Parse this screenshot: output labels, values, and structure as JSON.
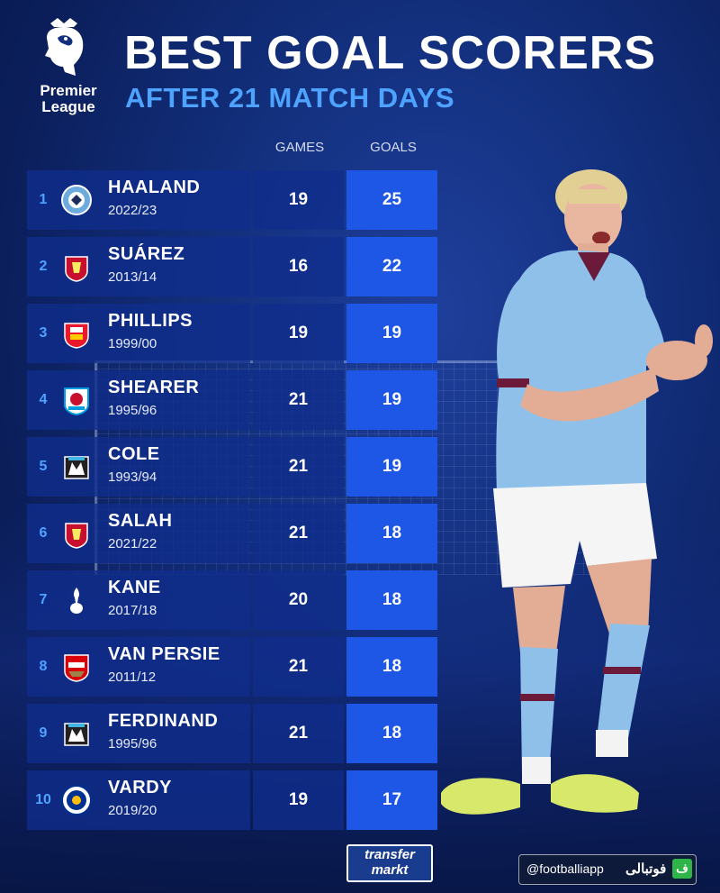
{
  "header": {
    "league_name": "Premier League",
    "title": "BEST GOAL SCORERS",
    "subtitle": "AFTER 21 MATCH DAYS"
  },
  "columns": {
    "games": "GAMES",
    "goals": "GOALS"
  },
  "rows": [
    {
      "rank": "1",
      "name": "HAALAND",
      "season": "2022/23",
      "games": "19",
      "goals": "25",
      "club_icon": "man-city-badge-icon"
    },
    {
      "rank": "2",
      "name": "SUÁREZ",
      "season": "2013/14",
      "games": "16",
      "goals": "22",
      "club_icon": "liverpool-badge-icon"
    },
    {
      "rank": "3",
      "name": "PHILLIPS",
      "season": "1999/00",
      "games": "19",
      "goals": "19",
      "club_icon": "sunderland-badge-icon"
    },
    {
      "rank": "4",
      "name": "SHEARER",
      "season": "1995/96",
      "games": "21",
      "goals": "19",
      "club_icon": "blackburn-badge-icon"
    },
    {
      "rank": "5",
      "name": "COLE",
      "season": "1993/94",
      "games": "21",
      "goals": "19",
      "club_icon": "newcastle-badge-icon"
    },
    {
      "rank": "6",
      "name": "SALAH",
      "season": "2021/22",
      "games": "21",
      "goals": "18",
      "club_icon": "liverpool-badge-icon"
    },
    {
      "rank": "7",
      "name": "KANE",
      "season": "2017/18",
      "games": "20",
      "goals": "18",
      "club_icon": "tottenham-badge-icon"
    },
    {
      "rank": "8",
      "name": "VAN PERSIE",
      "season": "2011/12",
      "games": "21",
      "goals": "18",
      "club_icon": "arsenal-badge-icon"
    },
    {
      "rank": "9",
      "name": "FERDINAND",
      "season": "1995/96",
      "games": "21",
      "goals": "18",
      "club_icon": "newcastle-badge-icon"
    },
    {
      "rank": "10",
      "name": "VARDY",
      "season": "2019/20",
      "games": "19",
      "goals": "17",
      "club_icon": "leicester-badge-icon"
    }
  ],
  "footer": {
    "brand_top": "transfer",
    "brand_bottom": "markt",
    "handle": "@footballiapp",
    "handle_arabic": "فوتبالی",
    "handle_mark": "ف"
  },
  "colors": {
    "accent_blue": "#4ea3ff",
    "goals_cell": "#1e57e6",
    "row_cell": "#0f2d8c",
    "background": "#13307e"
  }
}
